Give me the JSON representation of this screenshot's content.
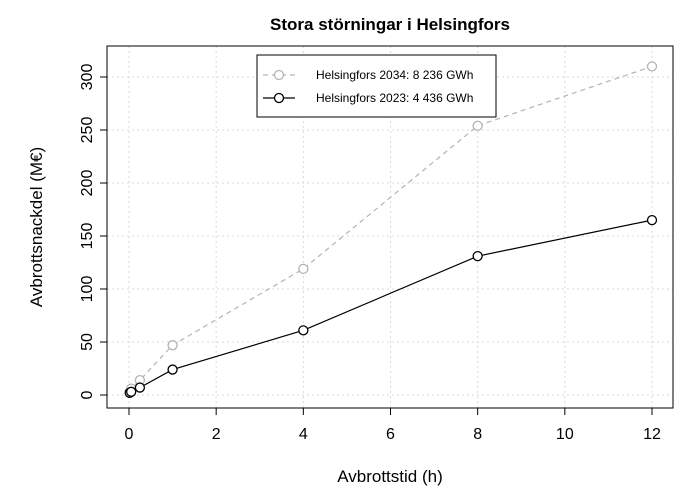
{
  "chart_data": {
    "type": "line",
    "title": "Stora störningar i Helsingfors",
    "xlabel": "Avbrottstid (h)",
    "ylabel": "Avbrottsnackdel (M€)",
    "xlim": [
      0,
      12
    ],
    "ylim": [
      0,
      300
    ],
    "x_ticks": [
      0,
      2,
      4,
      6,
      8,
      10,
      12
    ],
    "y_ticks": [
      0,
      50,
      100,
      150,
      200,
      250,
      300
    ],
    "grid": true,
    "legend_position": "top-center",
    "series": [
      {
        "name": "Helsingfors 2034: 8 236 GWh",
        "color": "#b3b3b3",
        "line_style": "dashed",
        "marker": "open-circle",
        "x": [
          0.0167,
          0.05,
          0.25,
          1,
          4,
          8,
          12
        ],
        "y": [
          3,
          6,
          14,
          47,
          119,
          254,
          310
        ]
      },
      {
        "name": "Helsingfors 2023: 4 436 GWh",
        "color": "#000000",
        "line_style": "solid",
        "marker": "open-circle",
        "x": [
          0.0167,
          0.05,
          0.25,
          1,
          4,
          8,
          12
        ],
        "y": [
          2,
          3,
          7,
          24,
          61,
          131,
          165
        ]
      }
    ]
  }
}
